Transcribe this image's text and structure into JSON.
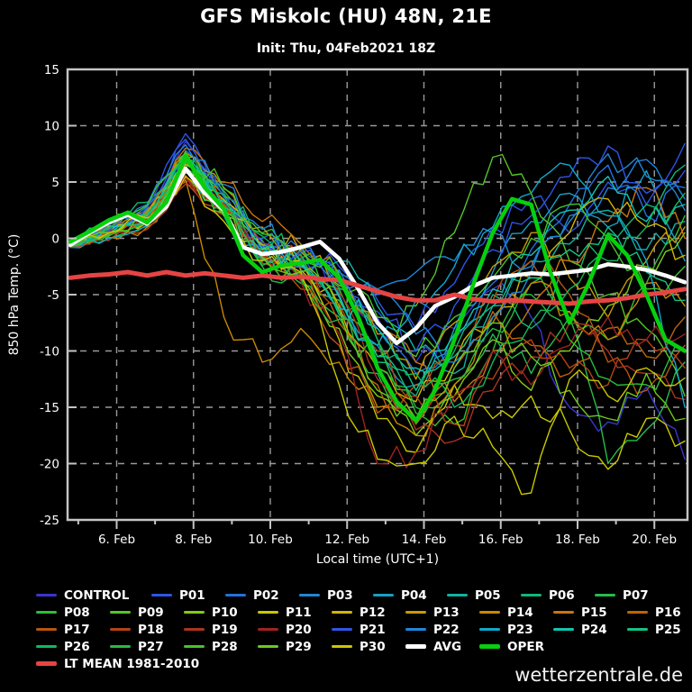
{
  "header": {
    "title": "GFS Miskolc (HU) 48N, 21E",
    "subtitle": "Init: Thu, 04Feb2021 18Z"
  },
  "footer": {
    "brand": "wetterzentrale.de"
  },
  "chart_data": {
    "type": "line",
    "title": "GFS Miskolc (HU) 48N, 21E",
    "subtitle": "Init: Thu, 04Feb2021 18Z",
    "xlabel": "Local time (UTC+1)",
    "ylabel": "850 hPa Temp. (°C)",
    "ylim": [
      -25,
      15
    ],
    "ytick_step": 5,
    "ytick_labels": [
      "15",
      "10",
      "5",
      "0",
      "-5",
      "-10",
      "-15",
      "-20",
      "-25"
    ],
    "x_days_total": 16,
    "x_major_ticks": [
      {
        "day": 1.208,
        "label": "6. Feb"
      },
      {
        "day": 3.208,
        "label": "8. Feb"
      },
      {
        "day": 5.208,
        "label": "10. Feb"
      },
      {
        "day": 7.208,
        "label": "12. Feb"
      },
      {
        "day": 9.208,
        "label": "14. Feb"
      },
      {
        "day": 11.208,
        "label": "16. Feb"
      },
      {
        "day": 13.208,
        "label": "18. Feb"
      },
      {
        "day": 15.208,
        "label": "20. Feb"
      }
    ],
    "x_minor_days": [
      0.208,
      2.208,
      4.208,
      6.208,
      8.208,
      10.208,
      12.208,
      14.208
    ],
    "grid": {
      "on": true,
      "dash": "7,7",
      "color": "#9a9a9a"
    },
    "frame_color": "#c4c4c4",
    "legend_position": "bottom",
    "main_step_days": 0.5,
    "main_series": [
      {
        "name": "AVG",
        "color": "#ffffff",
        "width": 4.5,
        "values": [
          -0.6,
          0.5,
          1.4,
          2.1,
          1.3,
          2.8,
          6.2,
          4.0,
          2.5,
          -0.8,
          -1.4,
          -1.2,
          -0.8,
          -0.3,
          -1.8,
          -4.5,
          -7.5,
          -9.3,
          -8.0,
          -6.0,
          -5.2,
          -4.2,
          -3.5,
          -3.3,
          -3.1,
          -3.2,
          -3.0,
          -2.8,
          -2.3,
          -2.5,
          -2.8,
          -3.3,
          -3.9
        ]
      },
      {
        "name": "LT MEAN 1981-2010",
        "color": "#e64444",
        "width": 5,
        "values": [
          -3.5,
          -3.3,
          -3.2,
          -3.0,
          -3.3,
          -3.0,
          -3.3,
          -3.1,
          -3.3,
          -3.5,
          -3.3,
          -3.5,
          -3.4,
          -3.6,
          -3.7,
          -4.2,
          -4.7,
          -5.2,
          -5.5,
          -5.5,
          -5.0,
          -5.4,
          -5.6,
          -5.5,
          -5.6,
          -5.7,
          -5.8,
          -5.6,
          -5.5,
          -5.3,
          -5.0,
          -4.8,
          -4.5
        ]
      },
      {
        "name": "OPER",
        "color": "#06d00e",
        "width": 4.5,
        "values": [
          -0.3,
          0.6,
          1.6,
          2.3,
          1.4,
          3.2,
          7.3,
          4.5,
          2.6,
          -1.5,
          -3.0,
          -2.4,
          -2.2,
          -1.9,
          -3.5,
          -7.0,
          -11.5,
          -14.5,
          -16.2,
          -13.5,
          -9.0,
          -4.0,
          0.5,
          3.5,
          3.0,
          -3.0,
          -7.5,
          -4.0,
          0.3,
          -1.5,
          -5.0,
          -9.0,
          -10.0
        ]
      }
    ],
    "member_step_days": 1,
    "member_width": 1.4,
    "jitter": {
      "seed": 7,
      "base": 0.3,
      "growth": 0.9
    },
    "members": [
      {
        "name": "CONTROL",
        "color": "#3a35cf",
        "values": [
          -0.5,
          0.6,
          2.1,
          8.6,
          3.0,
          -0.7,
          -1.8,
          -4.6,
          -7.0,
          -11.0,
          -8.0,
          -4.5,
          -7.0,
          -15.0,
          -16.3,
          -13.2,
          -19.6
        ]
      },
      {
        "name": "P01",
        "color": "#2e55e6",
        "values": [
          -0.4,
          0.9,
          2.2,
          9.3,
          3.2,
          -0.8,
          -1.5,
          -2.5,
          -5.5,
          -8.0,
          -4.0,
          1.0,
          3.5,
          0.5,
          5.0,
          3.0,
          8.4
        ]
      },
      {
        "name": "P02",
        "color": "#2470dd",
        "values": [
          -0.6,
          0.4,
          1.5,
          7.8,
          4.0,
          0.0,
          -1.0,
          -4.0,
          -8.0,
          -12.0,
          -9.0,
          -4.0,
          -1.0,
          3.0,
          6.5,
          2.0,
          4.5
        ]
      },
      {
        "name": "P03",
        "color": "#2287d2",
        "values": [
          -0.3,
          1.2,
          2.8,
          7.0,
          2.5,
          -1.5,
          -2.0,
          -3.0,
          -4.5,
          -3.0,
          -2.0,
          0.5,
          -2.5,
          2.0,
          7.5,
          5.5,
          2.5
        ]
      },
      {
        "name": "P04",
        "color": "#17a0c4",
        "values": [
          -0.8,
          0.2,
          1.8,
          6.5,
          3.5,
          -0.5,
          -2.5,
          -5.0,
          -9.5,
          -13.0,
          -8.0,
          -3.0,
          1.5,
          4.0,
          1.0,
          6.0,
          -2.0
        ]
      },
      {
        "name": "P05",
        "color": "#0fb2a4",
        "values": [
          -0.5,
          0.8,
          2.5,
          6.0,
          2.0,
          -2.0,
          -1.0,
          -2.0,
          -6.0,
          -10.0,
          -12.0,
          -6.0,
          -2.0,
          -0.5,
          2.5,
          -1.0,
          1.5
        ]
      },
      {
        "name": "P06",
        "color": "#12b878",
        "values": [
          -0.2,
          1.5,
          3.2,
          7.5,
          3.0,
          -1.0,
          -3.0,
          -6.5,
          -11.0,
          -14.0,
          -10.0,
          -5.0,
          -8.0,
          -3.0,
          0.5,
          3.0,
          6.5
        ]
      },
      {
        "name": "P07",
        "color": "#27bc4e",
        "values": [
          -0.7,
          0.0,
          1.2,
          5.5,
          2.8,
          -2.5,
          -4.0,
          -7.0,
          -12.0,
          -16.0,
          -13.0,
          -8.5,
          -12.0,
          -7.0,
          -20.0,
          -17.0,
          -11.0
        ]
      },
      {
        "name": "P08",
        "color": "#2fbe39",
        "values": [
          -0.4,
          0.6,
          2.0,
          6.8,
          4.2,
          0.5,
          -1.8,
          -4.5,
          -9.0,
          -15.5,
          -16.5,
          -10.0,
          -4.0,
          -6.5,
          -9.0,
          -4.0,
          2.0
        ]
      },
      {
        "name": "P09",
        "color": "#55c52a",
        "values": [
          -0.6,
          1.0,
          2.6,
          7.2,
          3.8,
          -0.2,
          -2.2,
          -5.5,
          -10.5,
          -6.0,
          0.5,
          7.2,
          4.0,
          -2.0,
          -5.0,
          -8.0,
          -14.0
        ]
      },
      {
        "name": "P10",
        "color": "#84ca16",
        "values": [
          -0.5,
          0.3,
          1.6,
          5.8,
          2.2,
          -1.8,
          -3.5,
          -8.0,
          -14.0,
          -17.5,
          -14.0,
          -9.0,
          -13.5,
          -10.0,
          -6.0,
          -2.5,
          0.5
        ]
      },
      {
        "name": "P11",
        "color": "#c9c800",
        "values": [
          -0.3,
          0.7,
          2.3,
          6.2,
          2.5,
          -1.0,
          -2.0,
          -9.0,
          -16.0,
          -19.0,
          -13.0,
          -16.0,
          -14.0,
          -17.0,
          -20.5,
          -16.0,
          -18.0
        ]
      },
      {
        "name": "P12",
        "color": "#d2b600",
        "values": [
          -0.6,
          0.2,
          1.4,
          6.6,
          3.4,
          -0.6,
          -2.8,
          -6.0,
          -11.5,
          -14.5,
          -11.0,
          -7.0,
          -3.5,
          0.5,
          3.5,
          1.0,
          -1.5
        ]
      },
      {
        "name": "P13",
        "color": "#c99b00",
        "values": [
          -0.4,
          1.1,
          2.1,
          7.6,
          4.5,
          1.0,
          -1.2,
          -4.2,
          -8.5,
          -12.5,
          -7.5,
          -2.5,
          0.5,
          -3.5,
          -7.0,
          -2.0,
          1.0
        ]
      },
      {
        "name": "P14",
        "color": "#c98800",
        "values": [
          -0.7,
          0.1,
          1.0,
          5.2,
          -7.0,
          -11.0,
          -8.0,
          -11.0,
          -15.0,
          -17.5,
          -13.0,
          -7.5,
          -4.0,
          -6.5,
          -9.0,
          -4.0,
          -6.0
        ]
      },
      {
        "name": "P15",
        "color": "#c97511",
        "values": [
          -0.5,
          0.9,
          2.4,
          8.0,
          5.0,
          1.5,
          -0.5,
          -3.5,
          -7.5,
          -11.0,
          -14.5,
          -10.0,
          -6.0,
          -2.0,
          1.5,
          4.5,
          0.0
        ]
      },
      {
        "name": "P16",
        "color": "#bf6307",
        "values": [
          -0.3,
          0.5,
          1.9,
          6.4,
          2.9,
          -1.4,
          -3.2,
          -7.5,
          -13.0,
          -16.5,
          -11.5,
          -6.5,
          -9.5,
          -12.0,
          -8.0,
          -10.5,
          -7.0
        ]
      },
      {
        "name": "P17",
        "color": "#bb5410",
        "values": [
          -0.6,
          0.4,
          1.3,
          5.0,
          2.4,
          -2.2,
          -4.5,
          -9.5,
          -15.5,
          -13.0,
          -9.5,
          -5.5,
          -2.0,
          -5.0,
          -11.0,
          -13.5,
          -9.5
        ]
      },
      {
        "name": "P18",
        "color": "#b54315",
        "values": [
          -0.8,
          -0.2,
          0.8,
          4.8,
          2.6,
          -1.6,
          -2.6,
          -5.8,
          -10.0,
          -14.0,
          -16.5,
          -12.5,
          -9.0,
          -11.5,
          -13.0,
          -9.0,
          -11.5
        ]
      },
      {
        "name": "P19",
        "color": "#ab3420",
        "values": [
          -0.5,
          0.6,
          1.7,
          5.6,
          3.1,
          -0.4,
          -1.6,
          -4.8,
          -12.5,
          -17.0,
          -18.0,
          -13.5,
          -10.5,
          -7.5,
          -10.0,
          -12.0,
          -14.3
        ]
      },
      {
        "name": "P20",
        "color": "#a12222",
        "values": [
          -0.4,
          0.8,
          1.5,
          5.4,
          2.1,
          -1.1,
          -3.8,
          -8.5,
          -20.0,
          -19.0,
          -14.0,
          -10.0,
          -13.0,
          -9.5,
          -7.0,
          -9.0,
          -8.5
        ]
      },
      {
        "name": "P21",
        "color": "#2e55e6",
        "values": [
          -0.6,
          0.7,
          2.7,
          8.8,
          3.6,
          -0.3,
          -1.2,
          -3.8,
          -6.5,
          -10.0,
          -6.0,
          -1.0,
          2.0,
          5.5,
          8.2,
          4.0,
          6.0
        ]
      },
      {
        "name": "P22",
        "color": "#1f86dc",
        "values": [
          -0.4,
          1.3,
          3.0,
          8.3,
          4.8,
          0.8,
          -0.8,
          -2.8,
          -5.0,
          -8.5,
          -11.0,
          -7.0,
          -3.0,
          1.5,
          4.5,
          7.0,
          3.5
        ]
      },
      {
        "name": "P23",
        "color": "#10a8ca",
        "values": [
          -0.7,
          0.0,
          1.1,
          6.1,
          2.3,
          -1.9,
          -2.4,
          -6.2,
          -9.5,
          -5.5,
          -2.5,
          1.0,
          4.0,
          6.5,
          2.0,
          -2.0,
          -15.0
        ]
      },
      {
        "name": "P24",
        "color": "#0fc6b2",
        "values": [
          -0.5,
          1.0,
          2.0,
          7.4,
          3.3,
          -0.9,
          -2.0,
          -5.2,
          -8.0,
          -11.5,
          -8.5,
          -4.5,
          -1.5,
          2.5,
          5.5,
          1.5,
          3.0
        ]
      },
      {
        "name": "P25",
        "color": "#12c287",
        "values": [
          -0.3,
          0.4,
          1.6,
          6.9,
          2.7,
          -1.3,
          -2.9,
          -6.8,
          -10.5,
          -13.5,
          -10.5,
          -6.0,
          -3.5,
          -1.0,
          1.0,
          -3.0,
          -5.5
        ]
      },
      {
        "name": "P26",
        "color": "#10b95e",
        "values": [
          -0.6,
          0.8,
          2.2,
          7.1,
          3.9,
          0.2,
          -1.4,
          -4.4,
          -9.0,
          -12.0,
          -15.0,
          -11.0,
          -7.5,
          -4.5,
          -2.0,
          1.0,
          4.0
        ]
      },
      {
        "name": "P27",
        "color": "#28bc3e",
        "values": [
          -0.4,
          0.2,
          1.4,
          6.3,
          2.4,
          -2.4,
          -3.6,
          -7.2,
          -11.5,
          -15.0,
          -12.5,
          -8.0,
          -5.0,
          -9.0,
          -12.5,
          -13.0,
          -10.0
        ]
      },
      {
        "name": "P28",
        "color": "#46c32b",
        "values": [
          -0.7,
          1.4,
          2.9,
          7.7,
          4.4,
          0.4,
          -0.6,
          -3.2,
          -7.0,
          -10.5,
          -7.0,
          -3.5,
          0.0,
          3.0,
          0.0,
          -4.5,
          -2.5
        ]
      },
      {
        "name": "P29",
        "color": "#6cc91a",
        "values": [
          -0.5,
          0.5,
          1.8,
          6.0,
          2.0,
          -1.7,
          -3.0,
          -6.4,
          -13.5,
          -16.0,
          -11.5,
          -7.5,
          -10.5,
          -13.5,
          -16.0,
          -12.0,
          -16.0
        ]
      },
      {
        "name": "P30",
        "color": "#c9c800",
        "values": [
          -0.5,
          0.5,
          1.8,
          5.5,
          1.5,
          -2.0,
          -3.0,
          -13.0,
          -19.6,
          -20.0,
          -15.8,
          -18.5,
          -22.6,
          -12.5,
          -14.0,
          -11.5,
          -12.4
        ]
      }
    ],
    "legend_thick_names": [
      "AVG",
      "OPER",
      "LT MEAN 1981-2010"
    ]
  }
}
